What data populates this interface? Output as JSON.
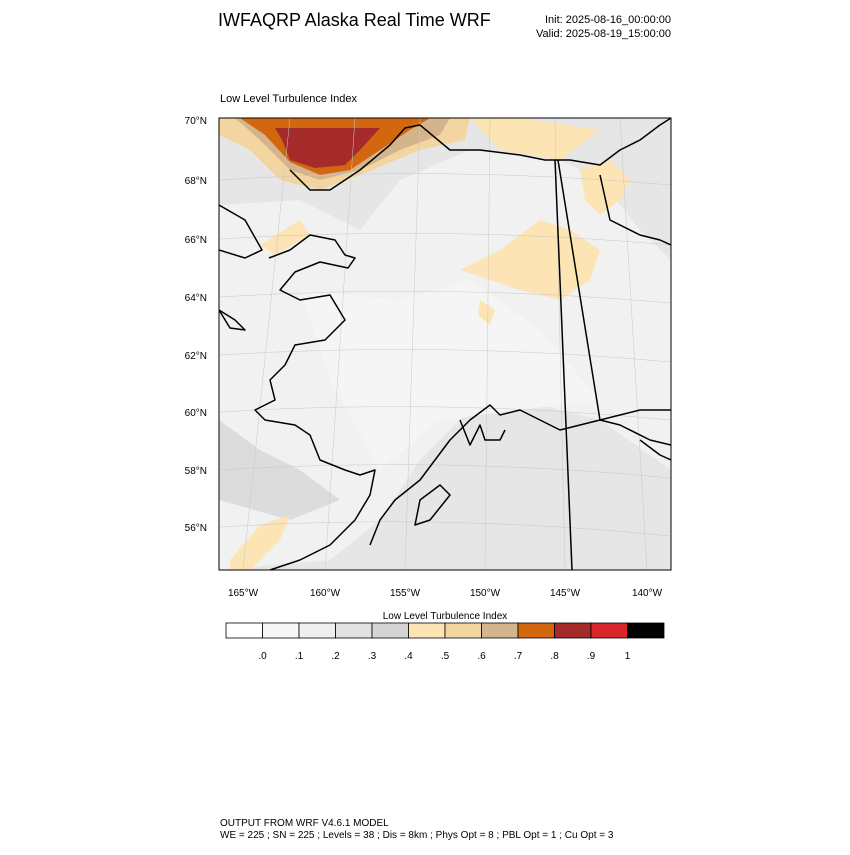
{
  "header": {
    "title": "IWFAQRP Alaska Real Time WRF",
    "init": "Init: 2025-08-16_00:00:00",
    "valid": "Valid: 2025-08-19_15:00:00"
  },
  "map": {
    "title": "Low Level Turbulence Index",
    "lat_labels": [
      "70°N",
      "68°N",
      "66°N",
      "64°N",
      "62°N",
      "60°N",
      "58°N",
      "56°N"
    ],
    "lon_labels": [
      "165°W",
      "160°W",
      "155°W",
      "150°W",
      "145°W",
      "140°W"
    ]
  },
  "colorbar": {
    "title": "Low Level Turbulence Index",
    "labels": [
      ".0",
      ".1",
      ".2",
      ".3",
      ".4",
      ".5",
      ".6",
      ".7",
      ".8",
      ".9",
      "1"
    ],
    "colors": [
      "#ffffff",
      "#f7f7f7",
      "#efefef",
      "#e2e2e2",
      "#d4d4d4",
      "#fde4b4",
      "#f3d5a2",
      "#d4b48c",
      "#d2670f",
      "#a52a2a",
      "#d8262b",
      "#000000"
    ]
  },
  "footer": {
    "line1": "OUTPUT FROM WRF V4.6.1 MODEL",
    "line2": "WE = 225 ; SN = 225 ; Levels = 38 ; Dis = 8km ; Phys Opt = 8 ; PBL Opt = 1 ; Cu Opt = 3"
  }
}
